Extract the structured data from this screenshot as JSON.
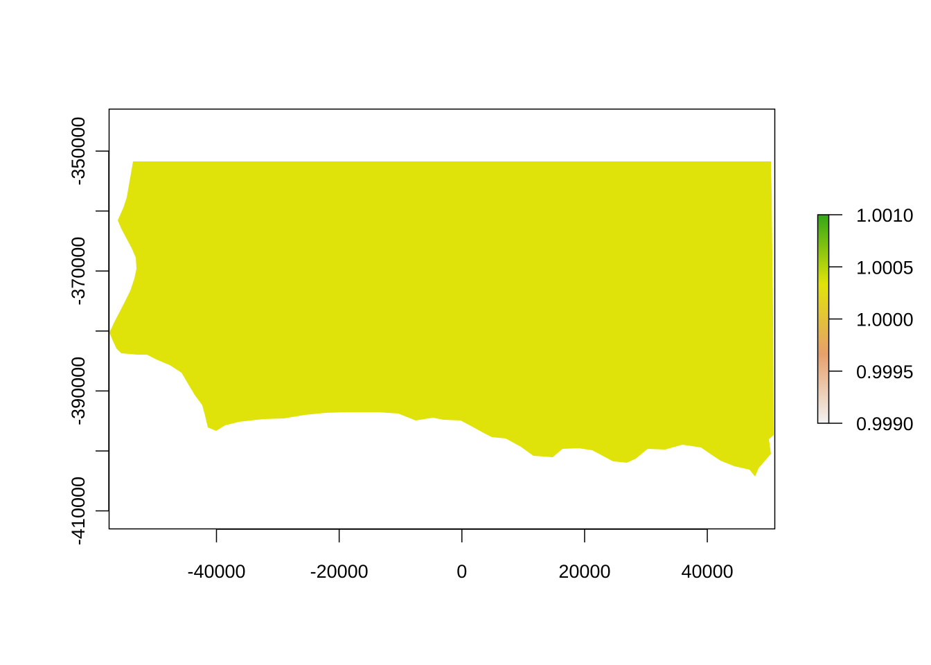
{
  "map": {
    "fill_color": "#e0e30a",
    "x_axis": {
      "range": [
        -57500,
        51000
      ],
      "ticks": [
        -40000,
        -20000,
        0,
        20000,
        40000
      ],
      "tick_labels": [
        "-40000",
        "-20000",
        "0",
        "20000",
        "40000"
      ]
    },
    "y_axis": {
      "range": [
        -413000,
        -343000
      ],
      "major_ticks": [
        -350000,
        -360000,
        -370000,
        -380000,
        -390000,
        -400000,
        -410000
      ],
      "labeled_ticks": [
        -350000,
        -370000,
        -390000,
        -410000
      ],
      "tick_labels": [
        "-350000",
        "-370000",
        "-390000",
        "-410000"
      ]
    },
    "legend": {
      "placement": "right",
      "range": [
        0.999,
        1.001
      ],
      "colors": [
        "#f2f2f2",
        "#e6a06a",
        "#e0e30a",
        "#32a617"
      ],
      "ticks": [
        0.999,
        0.9995,
        1.0,
        1.0005,
        1.001
      ],
      "tick_labels": [
        "0.9990",
        "0.9995",
        "1.0000",
        "1.0005",
        "1.0010"
      ]
    }
  }
}
